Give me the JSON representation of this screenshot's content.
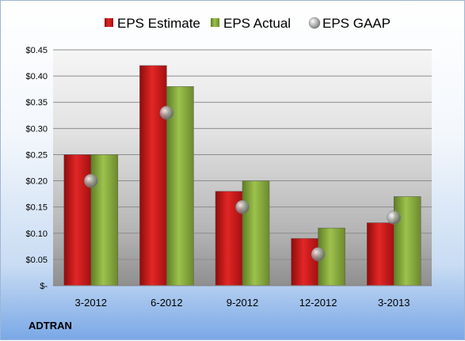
{
  "company": "ADTRAN",
  "chart_data": {
    "type": "bar",
    "categories": [
      "3-2012",
      "6-2012",
      "9-2012",
      "12-2012",
      "3-2013"
    ],
    "series": [
      {
        "name": "EPS Estimate",
        "kind": "bar",
        "color": "#d11a1a",
        "values": [
          0.25,
          0.42,
          0.18,
          0.09,
          0.12
        ]
      },
      {
        "name": "EPS Actual",
        "kind": "bar",
        "color": "#8aae3e",
        "values": [
          0.25,
          0.38,
          0.2,
          0.11,
          0.17
        ]
      },
      {
        "name": "EPS GAAP",
        "kind": "marker",
        "color": "#9a9a9a",
        "values": [
          0.2,
          0.33,
          0.15,
          0.06,
          0.13
        ]
      }
    ],
    "ylim": [
      0,
      0.45
    ],
    "yticks": [
      0,
      0.05,
      0.1,
      0.15,
      0.2,
      0.25,
      0.3,
      0.35,
      0.4,
      0.45
    ],
    "ytick_labels": [
      "$-",
      "$0.05",
      "$0.10",
      "$0.15",
      "$0.20",
      "$0.25",
      "$0.30",
      "$0.35",
      "$0.40",
      "$0.45"
    ],
    "grid": true,
    "legend_position": "top"
  }
}
